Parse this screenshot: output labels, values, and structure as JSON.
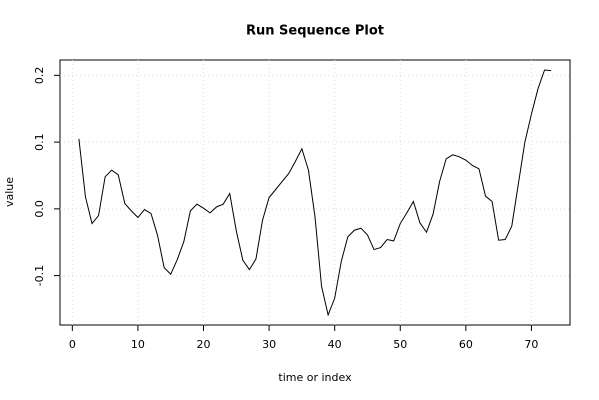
{
  "chart_data": {
    "type": "line",
    "title": "Run Sequence Plot",
    "x_label": "time or index",
    "y_label": "value",
    "x": [
      1,
      2,
      3,
      4,
      5,
      6,
      7,
      8,
      9,
      10,
      11,
      12,
      13,
      14,
      15,
      16,
      17,
      18,
      19,
      20,
      21,
      22,
      23,
      24,
      25,
      26,
      27,
      28,
      29,
      30,
      31,
      32,
      33,
      34,
      35,
      36,
      37,
      38,
      39,
      40,
      41,
      42,
      43,
      44,
      45,
      46,
      47,
      48,
      49,
      50,
      51,
      52,
      53,
      54,
      55,
      56,
      57,
      58,
      59,
      60,
      61,
      62,
      63,
      64,
      65,
      66,
      67,
      68,
      69,
      70,
      71,
      72,
      73
    ],
    "series": [
      {
        "name": "value",
        "color": "#000000",
        "values": [
          0.105,
          0.018,
          -0.022,
          -0.01,
          0.048,
          0.058,
          0.051,
          0.008,
          -0.003,
          -0.013,
          -0.001,
          -0.007,
          -0.04,
          -0.088,
          -0.098,
          -0.076,
          -0.049,
          -0.003,
          0.007,
          0.001,
          -0.006,
          0.003,
          0.007,
          0.023,
          -0.033,
          -0.077,
          -0.091,
          -0.075,
          -0.017,
          0.017,
          0.029,
          0.041,
          0.053,
          0.071,
          0.09,
          0.058,
          -0.012,
          -0.116,
          -0.159,
          -0.134,
          -0.079,
          -0.042,
          -0.032,
          -0.029,
          -0.039,
          -0.061,
          -0.058,
          -0.046,
          -0.048,
          -0.022,
          -0.006,
          0.011,
          -0.021,
          -0.035,
          -0.008,
          0.041,
          0.075,
          0.081,
          0.078,
          0.073,
          0.065,
          0.06,
          0.019,
          0.011,
          -0.047,
          -0.046,
          -0.026,
          0.037,
          0.1,
          0.142,
          0.18,
          0.208,
          0.207
        ]
      }
    ],
    "xlim": [
      -1.88,
      75.88
    ],
    "ylim": [
      -0.174,
      0.223
    ],
    "xticks": [
      0,
      10,
      20,
      30,
      40,
      50,
      60,
      70
    ],
    "yticks": [
      -0.1,
      {
        "value": 0,
        "label": "0.0"
      },
      0.1,
      0.2
    ],
    "grid": true
  }
}
